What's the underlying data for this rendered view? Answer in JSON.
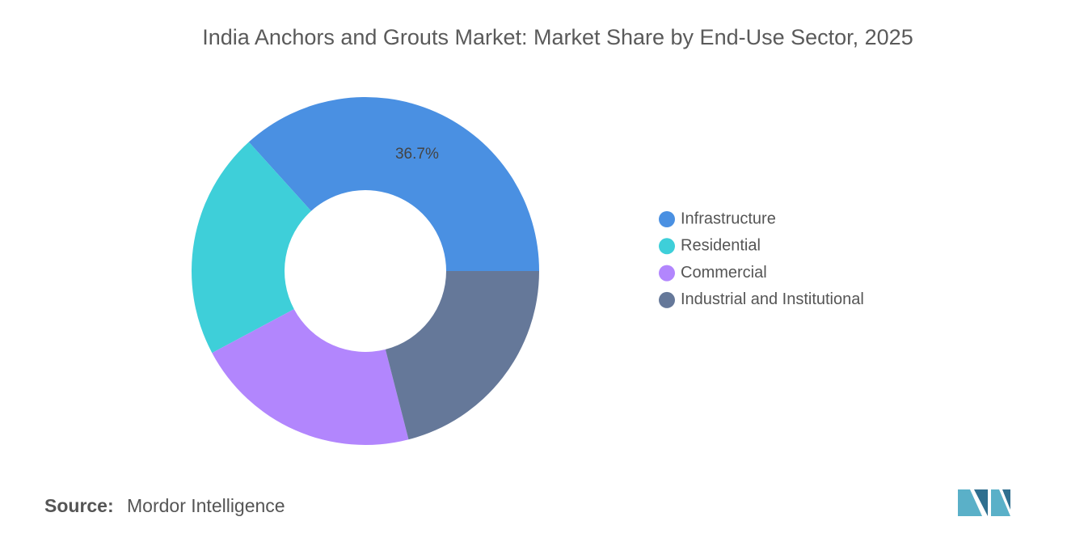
{
  "chart_data": {
    "type": "donut",
    "title": "India Anchors and Grouts Market: Market Share by End-Use Sector, 2025",
    "categories": [
      "Infrastructure",
      "Residential",
      "Commercial",
      "Industrial and Institutional"
    ],
    "values": [
      36.7,
      21.1,
      21.2,
      21.0
    ],
    "value_labels": [
      "36.7%",
      null,
      null,
      null
    ],
    "colors": [
      "#4a90e2",
      "#3ecfd9",
      "#b286fd",
      "#657899"
    ],
    "legend": "right"
  },
  "source_label": "Source:",
  "source": "Mordor Intelligence"
}
